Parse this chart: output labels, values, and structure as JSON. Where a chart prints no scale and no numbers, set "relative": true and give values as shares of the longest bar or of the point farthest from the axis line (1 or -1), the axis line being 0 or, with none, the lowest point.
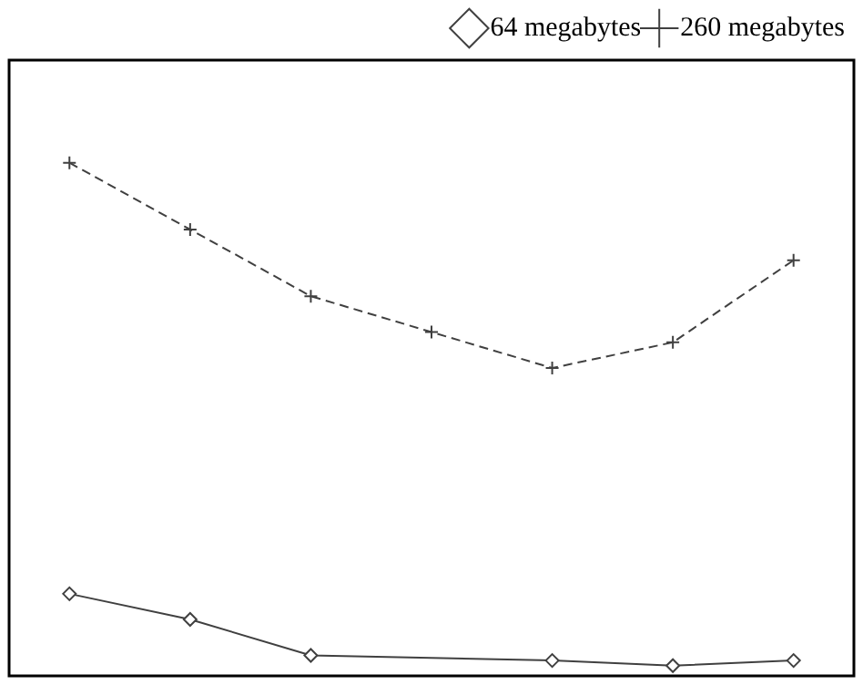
{
  "chart_data": {
    "type": "line",
    "relative": true,
    "categories": [
      null,
      null,
      null,
      null,
      null,
      null,
      null
    ],
    "legend": "top right",
    "series": [
      {
        "name": "64 megabytes",
        "color": "#404040",
        "marker": "diamond",
        "line_style": "solid",
        "values": [
          0.16,
          0.11,
          0.04,
          null,
          0.03,
          0.02,
          0.03
        ]
      },
      {
        "name": "260 megabytes",
        "color": "#404040",
        "marker": "cross",
        "line_style": "dashed",
        "values": [
          1,
          0.87,
          0.74,
          0.67,
          0.6,
          0.65,
          0.81
        ]
      }
    ]
  }
}
